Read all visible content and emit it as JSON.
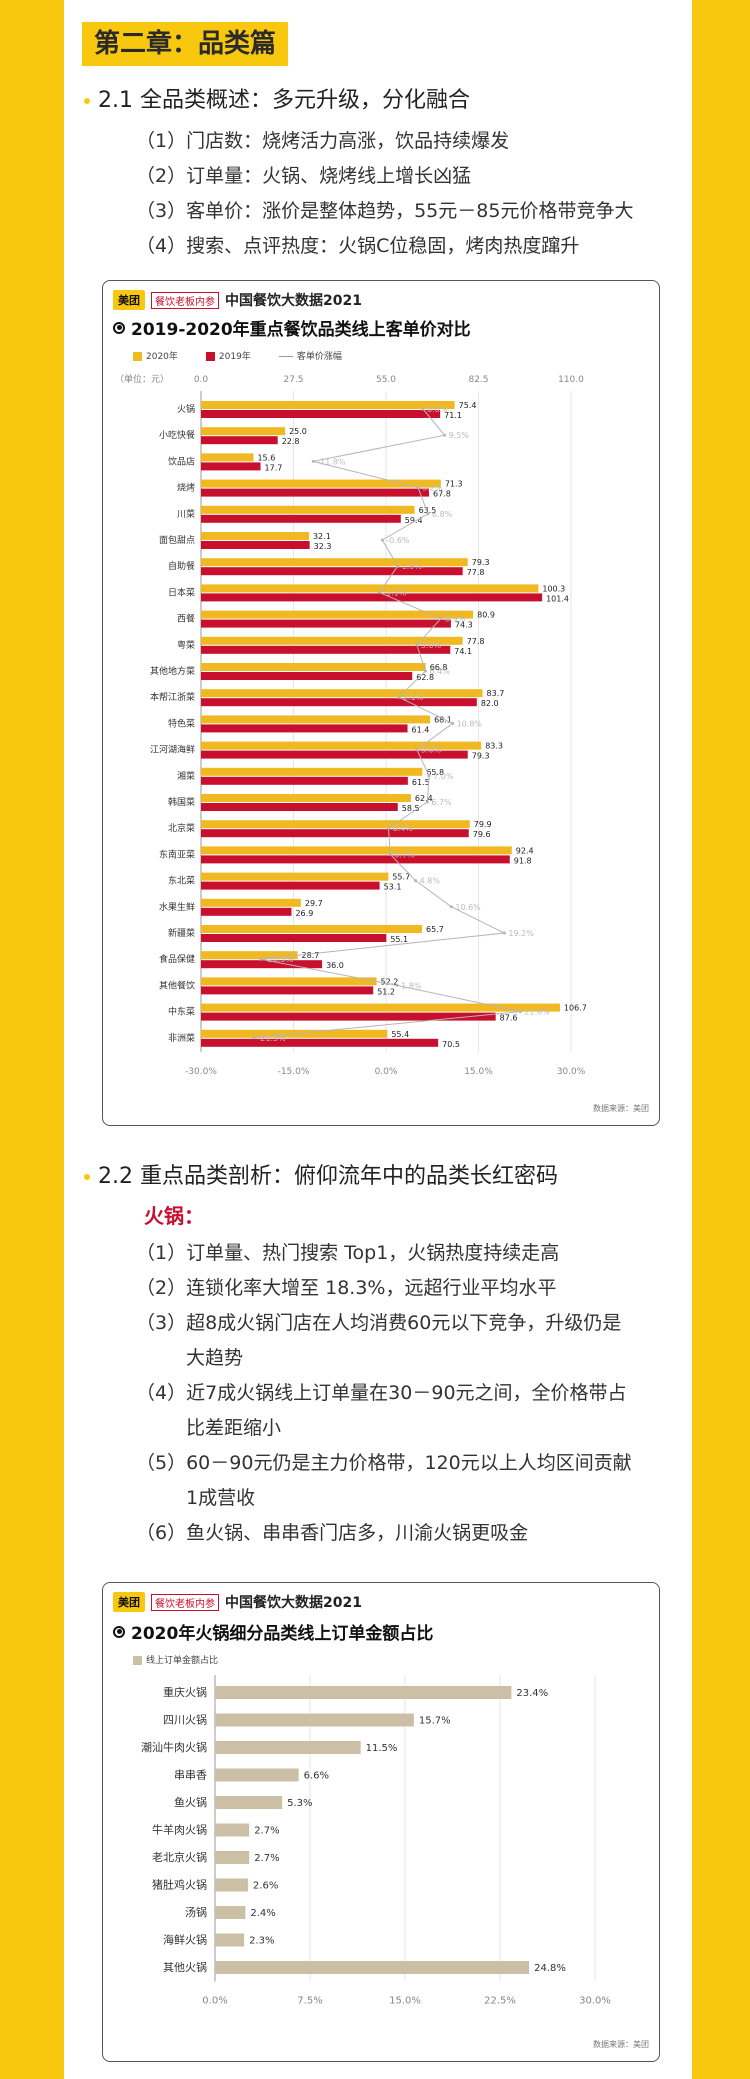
{
  "chapter": "第二章：品类篇",
  "section1": {
    "title": "2.1 全品类概述：多元升级，分化融合",
    "items": [
      "（1）门店数：烧烤活力高涨，饮品持续爆发",
      "（2）订单量：火锅、烧烤线上增长凶猛",
      "（3）客单价：涨价是整体趋势，55元－85元价格带竞争大",
      "（4）搜索、点评热度：火锅C位稳固，烤肉热度蹿升"
    ]
  },
  "card1": {
    "logo": "美团",
    "tag": "餐饮老板内参",
    "report": "中国餐饮大数据2021",
    "title": "2019-2020年重点餐饮品类线上客单价对比",
    "legend": [
      "2020年",
      "2019年",
      "客单价涨幅"
    ],
    "unit": "（单位：元）",
    "source": "数据来源：美团"
  },
  "section2": {
    "title": "2.2 重点品类剖析：俯仰流年中的品类长红密码",
    "subhead": "火锅：",
    "items": [
      "（1）订单量、热门搜索 Top1，火锅热度持续走高",
      "（2）连锁化率大增至 18.3%，远超行业平均水平",
      "（3）超8成火锅门店在人均消费60元以下竞争，升级仍是",
      "大趋势",
      "（4）近7成火锅线上订单量在30－90元之间，全价格带占",
      "比差距缩小",
      "（5）60－90元仍是主力价格带，120元以上人均区间贡献",
      "1成营收",
      "（6）鱼火锅、串串香门店多，川渝火锅更吸金"
    ]
  },
  "card2": {
    "logo": "美团",
    "tag": "餐饮老板内参",
    "report": "中国餐饮大数据2021",
    "title": "2020年火锅细分品类线上订单金额占比",
    "legend": [
      "线上订单金额占比"
    ],
    "source": "数据来源：美团"
  },
  "colors": {
    "y2020": "#f0b922",
    "y2019": "#c8102e",
    "growth": "#b5b5b5",
    "bar2": "#cbc0a6",
    "accent": "#f8c80f"
  },
  "chart_data": [
    {
      "type": "bar",
      "orientation": "horizontal",
      "title": "2019-2020年重点餐饮品类线上客单价对比",
      "unit": "（单位：元）",
      "categories": [
        "火锅",
        "小吃快餐",
        "饮品店",
        "烧烤",
        "川菜",
        "面包甜点",
        "自助餐",
        "日本菜",
        "西餐",
        "粤菜",
        "其他地方菜",
        "本帮江浙菜",
        "特色菜",
        "江河湖海鲜",
        "湘菜",
        "韩国菜",
        "北京菜",
        "东南亚菜",
        "东北菜",
        "水果生鲜",
        "新疆菜",
        "食品保健",
        "其他餐饮",
        "中东菜",
        "非洲菜"
      ],
      "series": [
        {
          "name": "2020年",
          "values": [
            75.4,
            25.0,
            15.6,
            71.3,
            63.5,
            32.1,
            79.3,
            100.3,
            80.9,
            77.8,
            66.8,
            83.7,
            68.1,
            83.3,
            65.8,
            62.4,
            79.9,
            92.4,
            55.7,
            29.7,
            65.7,
            28.7,
            52.2,
            106.7,
            55.4
          ]
        },
        {
          "name": "2019年",
          "values": [
            71.1,
            22.8,
            17.7,
            67.8,
            59.4,
            32.3,
            77.8,
            101.4,
            74.3,
            74.1,
            62.8,
            82.0,
            61.4,
            79.3,
            61.5,
            58.5,
            79.6,
            91.8,
            53.1,
            26.9,
            55.1,
            36.0,
            51.2,
            87.6,
            70.5
          ]
        },
        {
          "name": "客单价涨幅",
          "unit": "%",
          "values": [
            6.0,
            9.5,
            -11.8,
            5.2,
            6.8,
            -0.6,
            1.9,
            -1.1,
            8.9,
            5.0,
            6.4,
            2.1,
            10.8,
            5.0,
            7.0,
            6.7,
            0.4,
            0.7,
            4.8,
            10.6,
            19.2,
            -20.3,
            1.8,
            21.8,
            -21.5
          ]
        }
      ],
      "top_axis": {
        "ticks": [
          0.0,
          27.5,
          55.0,
          82.5,
          110.0
        ],
        "range": [
          0,
          110
        ]
      },
      "bottom_axis": {
        "ticks": [
          "-30.0%",
          "-15.0%",
          "0.0%",
          "15.0%",
          "30.0%"
        ],
        "range": [
          -30,
          30
        ]
      },
      "legend_position": "top-left",
      "grid": true
    },
    {
      "type": "bar",
      "orientation": "horizontal",
      "title": "2020年火锅细分品类线上订单金额占比",
      "categories": [
        "重庆火锅",
        "四川火锅",
        "潮汕牛肉火锅",
        "串串香",
        "鱼火锅",
        "牛羊肉火锅",
        "老北京火锅",
        "猪肚鸡火锅",
        "汤锅",
        "海鲜火锅",
        "其他火锅"
      ],
      "series": [
        {
          "name": "线上订单金额占比",
          "unit": "%",
          "values": [
            23.4,
            15.7,
            11.5,
            6.6,
            5.3,
            2.7,
            2.7,
            2.6,
            2.4,
            2.3,
            24.8
          ]
        }
      ],
      "x_axis": {
        "ticks": [
          "0.0%",
          "7.5%",
          "15.0%",
          "22.5%",
          "30.0%"
        ],
        "range": [
          0,
          30
        ]
      },
      "legend_position": "top-left",
      "grid": true
    }
  ]
}
